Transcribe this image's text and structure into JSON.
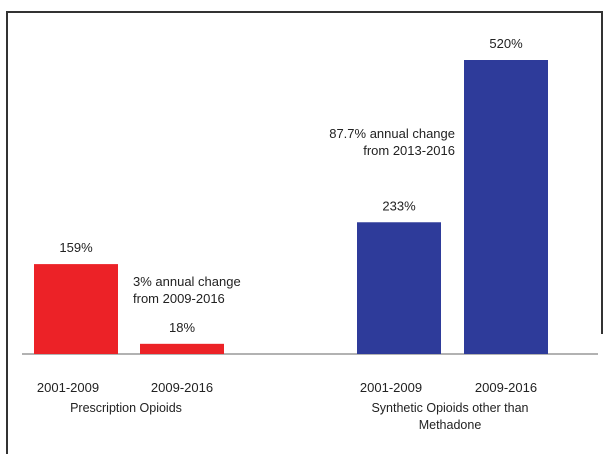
{
  "chart_data": {
    "type": "bar",
    "ylim": [
      0,
      600
    ],
    "grid": false,
    "colors": {
      "prescription": "#ec2227",
      "synthetic": "#2e3b9a",
      "frame": "#333333",
      "baseline": "#999999"
    },
    "groups": [
      {
        "name": "Prescription Opioids",
        "name_lines": [
          "Prescription Opioids"
        ],
        "color": "#ec2227",
        "categories": [
          "2001-2009",
          "2009-2016"
        ],
        "values": [
          159,
          18
        ],
        "value_labels": [
          "159%",
          "18%"
        ],
        "annotation_lines": [
          "3% annual change",
          "from 2009-2016"
        ]
      },
      {
        "name": "Synthetic Opioids other than Methadone",
        "name_lines": [
          "Synthetic Opioids other than",
          "Methadone"
        ],
        "color": "#2e3b9a",
        "categories": [
          "2001-2009",
          "2009-2016"
        ],
        "values": [
          233,
          520
        ],
        "value_labels": [
          "233%",
          "520%"
        ],
        "annotation_lines": [
          "87.7% annual change",
          "from 2013-2016"
        ]
      }
    ]
  }
}
